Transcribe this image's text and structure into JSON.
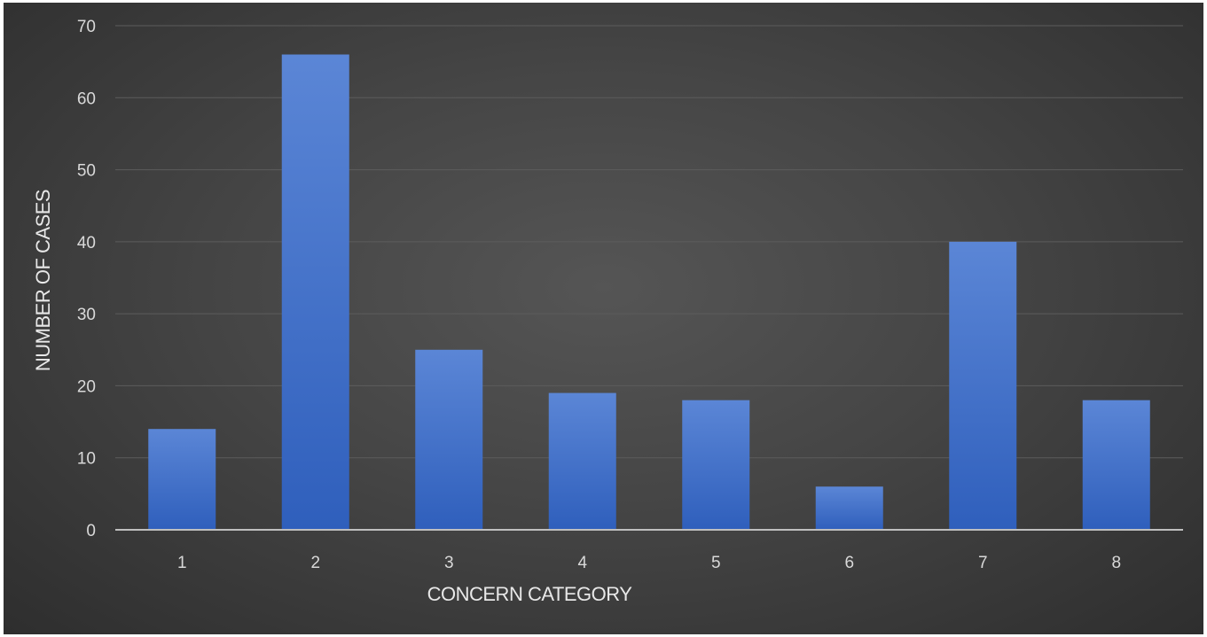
{
  "chart_data": {
    "type": "bar",
    "categories": [
      "1",
      "2",
      "3",
      "4",
      "5",
      "6",
      "7",
      "8"
    ],
    "values": [
      14,
      66,
      25,
      19,
      18,
      6,
      40,
      18
    ],
    "title": "",
    "xlabel": "CONCERN CATEGORY",
    "ylabel": "NUMBER OF CASES",
    "ylim": [
      0,
      70
    ],
    "yticks": [
      0,
      10,
      20,
      30,
      40,
      50,
      60,
      70
    ],
    "grid": true,
    "legend": "none",
    "colors": {
      "bar_top": "#5b86d6",
      "bar_bottom": "#2f5fbc",
      "gridline": "#5c5c5c",
      "axis": "#bfbfbf",
      "text": "#d9d9d9"
    }
  }
}
